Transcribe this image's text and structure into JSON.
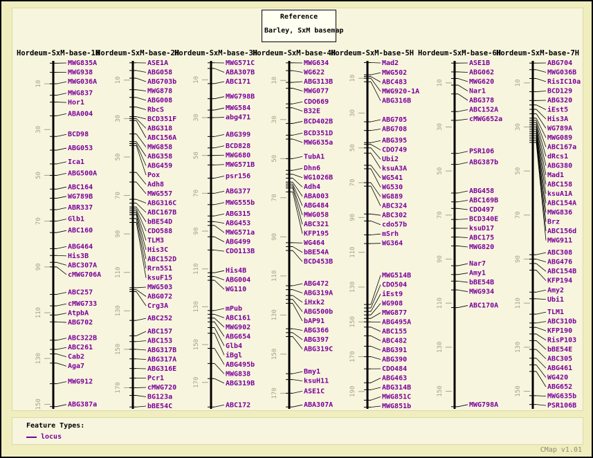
{
  "reference_box": {
    "line1": "Reference",
    "line2": "Barley, SxM basemap"
  },
  "legend": {
    "title": "Feature Types:",
    "items": [
      {
        "label": "locus",
        "color": "#7A0099"
      }
    ]
  },
  "footer": {
    "version": "CMap v1.01"
  },
  "colors": {
    "locus_label": "#7A0099",
    "scale_tick": "#A3A383",
    "map_line": "#000000",
    "connector": "#000000",
    "panel_bg": "#F7F5DE",
    "outer_bg": "#F0EDBE"
  },
  "maps": [
    {
      "name": "Hordeum-SxM-base-1H",
      "max": 152,
      "ticks": [
        10,
        30,
        50,
        70,
        90,
        110,
        130,
        150
      ],
      "loci": [
        [
          "MWG835A",
          1
        ],
        [
          "MWG938",
          5
        ],
        [
          "MWG036A",
          10
        ],
        [
          "MWG837",
          15
        ],
        [
          "Hor1",
          18
        ],
        [
          "ABA004",
          24
        ],
        [
          "BCD98",
          33
        ],
        [
          "ABG053",
          39
        ],
        [
          "Ica1",
          45
        ],
        [
          "ABG500A",
          50
        ],
        [
          "ABC164",
          56
        ],
        [
          "WG789B",
          60
        ],
        [
          "ABR337",
          65
        ],
        [
          "Glb1",
          70
        ],
        [
          "ABC160",
          75
        ],
        [
          "ABG464",
          82
        ],
        [
          "His3B",
          85
        ],
        [
          "ABC307A",
          88
        ],
        [
          "cMWG706A",
          90
        ],
        [
          "ABC257",
          102
        ],
        [
          "cMWG733",
          107
        ],
        [
          "AtpbA",
          111
        ],
        [
          "ABG702",
          114
        ],
        [
          "ABC322B",
          122
        ],
        [
          "ABC261",
          126
        ],
        [
          "Cab2",
          128
        ],
        [
          "Aga7",
          132
        ],
        [
          "MWG912",
          141
        ],
        [
          "ABG387a",
          151
        ]
      ]
    },
    {
      "name": "Hordeum-SxM-base-2H",
      "max": 181,
      "ticks": [
        10,
        30,
        50,
        70,
        90,
        110,
        130,
        150,
        170
      ],
      "loci": [
        [
          "ASE1A",
          1
        ],
        [
          "ABG058",
          5
        ],
        [
          "ABG703b",
          9
        ],
        [
          "MWG878",
          15
        ],
        [
          "ABG008",
          19
        ],
        [
          "RbcS",
          24
        ],
        [
          "BCD351F",
          29
        ],
        [
          "ABG318",
          30
        ],
        [
          "ABC156A",
          31
        ],
        [
          "MWG858",
          38
        ],
        [
          "ABG358",
          42
        ],
        [
          "ABG459",
          43
        ],
        [
          "Pox",
          44
        ],
        [
          "Adh8",
          58
        ],
        [
          "MWG557",
          63
        ],
        [
          "ABG316C",
          72
        ],
        [
          "ABC167B",
          74
        ],
        [
          "bBE54D",
          76
        ],
        [
          "CDO588",
          77
        ],
        [
          "TLM3",
          78
        ],
        [
          "His3C",
          79
        ],
        [
          "ABC152D",
          80
        ],
        [
          "Rrn5S1",
          82
        ],
        [
          "ksuF15",
          84
        ],
        [
          "MWG503",
          118
        ],
        [
          "ABG072",
          119
        ],
        [
          "Crg3A",
          120
        ],
        [
          "ABC252",
          135
        ],
        [
          "ABC157",
          143
        ],
        [
          "ABC153",
          146
        ],
        [
          "ABG317B",
          150
        ],
        [
          "ABG317A",
          155
        ],
        [
          "ABG316E",
          160
        ],
        [
          "Pcr1",
          165
        ],
        [
          "cMWG720",
          170
        ],
        [
          "BG123a",
          174
        ],
        [
          "bBE54C",
          180
        ]
      ]
    },
    {
      "name": "Hordeum-SxM-base-3H",
      "max": 184,
      "ticks": [
        10,
        30,
        50,
        70,
        90,
        110,
        130,
        150,
        170
      ],
      "loci": [
        [
          "MWG571C",
          1
        ],
        [
          "ABA307B",
          4
        ],
        [
          "ABC171",
          12
        ],
        [
          "MWG798B",
          20
        ],
        [
          "MWG584",
          26
        ],
        [
          "abg471",
          30
        ],
        [
          "ABG399",
          40
        ],
        [
          "BCD828",
          46
        ],
        [
          "MWG680",
          50
        ],
        [
          "MWG571B",
          55
        ],
        [
          "psr156",
          62
        ],
        [
          "ABG377",
          70
        ],
        [
          "MWG555b",
          76
        ],
        [
          "ABG315",
          82
        ],
        [
          "ABG453",
          85
        ],
        [
          "MWG571a",
          87
        ],
        [
          "ABG499",
          93
        ],
        [
          "CDO113B",
          100
        ],
        [
          "His4B",
          112
        ],
        [
          "ABG004",
          114
        ],
        [
          "WG110",
          116
        ],
        [
          "mPub",
          132
        ],
        [
          "ABC161",
          134
        ],
        [
          "MWG902",
          136
        ],
        [
          "ABG654",
          138
        ],
        [
          "Glb4",
          141
        ],
        [
          "iBgl",
          144
        ],
        [
          "ABG495b",
          152
        ],
        [
          "MWG838",
          160
        ],
        [
          "ABG319B",
          168
        ],
        [
          "ABC172",
          183
        ]
      ]
    },
    {
      "name": "Hordeum-SxM-base-4H",
      "max": 178,
      "ticks": [
        10,
        30,
        50,
        70,
        90,
        110,
        130,
        150,
        170
      ],
      "loci": [
        [
          "MWG634",
          1
        ],
        [
          "WG622",
          5
        ],
        [
          "ABG313B",
          11
        ],
        [
          "MWG077",
          14
        ],
        [
          "CDO669",
          22
        ],
        [
          "B32E",
          24
        ],
        [
          "BCD402B",
          32
        ],
        [
          "BCD351D",
          38
        ],
        [
          "MWG635a",
          40
        ],
        [
          "TubA1",
          50
        ],
        [
          "Dhn6",
          56
        ],
        [
          "WG1026B",
          58
        ],
        [
          "Adh4",
          60
        ],
        [
          "ABA003",
          62
        ],
        [
          "ABG484",
          63
        ],
        [
          "MWG058",
          64
        ],
        [
          "ABC321",
          65
        ],
        [
          "KFP195",
          67
        ],
        [
          "WG464",
          93
        ],
        [
          "bBE54A",
          95
        ],
        [
          "BCD453B",
          97
        ],
        [
          "ABG472",
          115
        ],
        [
          "ABG319A",
          117
        ],
        [
          "iHxk2",
          120
        ],
        [
          "ABG500b",
          122
        ],
        [
          "bAP91",
          124
        ],
        [
          "ABG366",
          137
        ],
        [
          "ABG397",
          139
        ],
        [
          "ABG319C",
          141
        ],
        [
          "Bmy1",
          160
        ],
        [
          "ksuH11",
          163
        ],
        [
          "ASE1C",
          170
        ],
        [
          "ABA307A",
          177
        ]
      ]
    },
    {
      "name": "Hordeum-SxM-base-5H",
      "max": 200,
      "ticks": [
        10,
        30,
        50,
        70,
        90,
        110,
        130,
        150,
        170,
        190
      ],
      "loci": [
        [
          "Mad2",
          1
        ],
        [
          "MWG502",
          8
        ],
        [
          "ABC483",
          9
        ],
        [
          "MWG920-1A",
          10
        ],
        [
          "ABG316B",
          12
        ],
        [
          "ABG705",
          35
        ],
        [
          "ABG708",
          40
        ],
        [
          "ABG395",
          47
        ],
        [
          "CDO749",
          48
        ],
        [
          "Ubi2",
          50
        ],
        [
          "ksuA3A",
          53
        ],
        [
          "WG541",
          60
        ],
        [
          "WG530",
          62
        ],
        [
          "WG889",
          70
        ],
        [
          "ABC324",
          72
        ],
        [
          "ABC302",
          88
        ],
        [
          "cdo57b",
          92
        ],
        [
          "mSrh",
          100
        ],
        [
          "WG364",
          105
        ],
        [
          "MWG514B",
          140
        ],
        [
          "CDO504",
          142
        ],
        [
          "iEst9",
          144
        ],
        [
          "WG908",
          146
        ],
        [
          "MWG877",
          148
        ],
        [
          "ABG495A",
          150
        ],
        [
          "ABC155",
          153
        ],
        [
          "ABC482",
          158
        ],
        [
          "ABG391",
          164
        ],
        [
          "ABG390",
          170
        ],
        [
          "CDO484",
          177
        ],
        [
          "ABG463",
          185
        ],
        [
          "ABG314B",
          189
        ],
        [
          "MWG851C",
          195
        ],
        [
          "MWG851b",
          199
        ]
      ]
    },
    {
      "name": "Hordeum-SxM-base-6H",
      "max": 158,
      "ticks": [
        10,
        30,
        50,
        70,
        90,
        110,
        130,
        150
      ],
      "loci": [
        [
          "ASE1B",
          1
        ],
        [
          "ABG062",
          5
        ],
        [
          "MWG620",
          8
        ],
        [
          "Nar1",
          11
        ],
        [
          "ABG378",
          15
        ],
        [
          "ABC152A",
          23
        ],
        [
          "cMWG652a",
          27
        ],
        [
          "PSR106",
          42
        ],
        [
          "ABG387b",
          47
        ],
        [
          "ABG458",
          60
        ],
        [
          "ABC169B",
          64
        ],
        [
          "CDO497",
          67
        ],
        [
          "BCD340E",
          72
        ],
        [
          "ksuD17",
          76
        ],
        [
          "ABC175",
          80
        ],
        [
          "MWG820",
          84
        ],
        [
          "Nar7",
          93
        ],
        [
          "Amy1",
          97
        ],
        [
          "bBE54B",
          100
        ],
        [
          "MWG934",
          104
        ],
        [
          "ABC170A",
          112
        ],
        [
          "MWG798A",
          157
        ]
      ]
    },
    {
      "name": "Hordeum-SxM-base-7H",
      "max": 158,
      "ticks": [
        10,
        30,
        50,
        70,
        90,
        110,
        130,
        150
      ],
      "loci": [
        [
          "ABG704",
          1
        ],
        [
          "MWG036B",
          4
        ],
        [
          "RisIC10a",
          8
        ],
        [
          "BCD129",
          14
        ],
        [
          "ABG320",
          18
        ],
        [
          "iEst5",
          20
        ],
        [
          "His3A",
          22
        ],
        [
          "WG789A",
          24
        ],
        [
          "MWG089",
          26
        ],
        [
          "ABC167a",
          27
        ],
        [
          "dRcs1",
          28
        ],
        [
          "ABG380",
          29
        ],
        [
          "Mad1",
          30
        ],
        [
          "ABC158",
          31
        ],
        [
          "ksuA1A",
          32
        ],
        [
          "ABC154A",
          33
        ],
        [
          "MWG836",
          34
        ],
        [
          "Brz",
          35
        ],
        [
          "ABC156d",
          36
        ],
        [
          "MWG911",
          37
        ],
        [
          "ABC308",
          88
        ],
        [
          "ABG476",
          90
        ],
        [
          "ABC154B",
          92
        ],
        [
          "KFP194",
          95
        ],
        [
          "Amy2",
          105
        ],
        [
          "Ubi1",
          108
        ],
        [
          "TLM1",
          115
        ],
        [
          "ABC310b",
          119
        ],
        [
          "KFP190",
          121
        ],
        [
          "RisP103",
          124
        ],
        [
          "bBE54E",
          127
        ],
        [
          "ABC305",
          131
        ],
        [
          "ABG461",
          135
        ],
        [
          "WG420",
          138
        ],
        [
          "ABG652",
          141
        ],
        [
          "MWG635b",
          152
        ],
        [
          "PSR106B",
          156
        ]
      ]
    }
  ]
}
